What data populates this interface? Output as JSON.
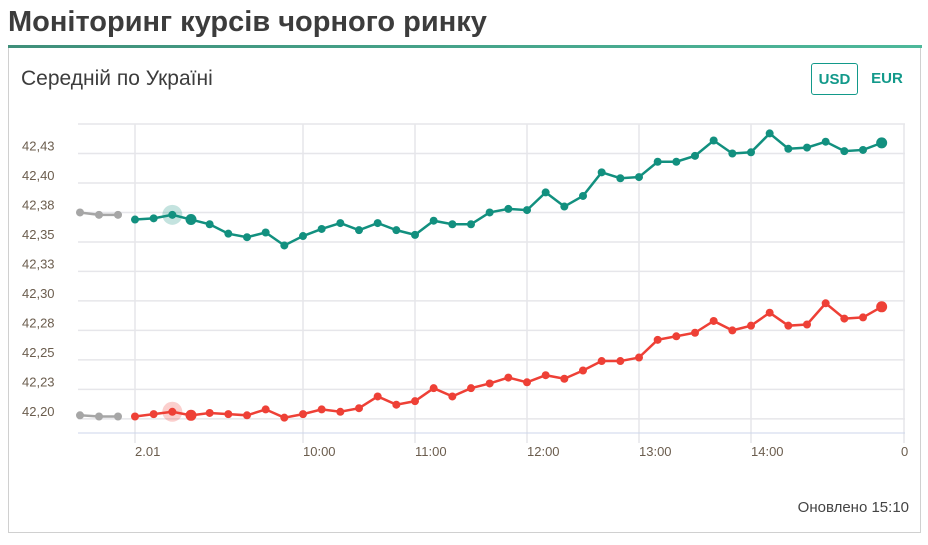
{
  "header": {
    "title": "Моніторинг курсів чорного ринку"
  },
  "card": {
    "subtitle": "Середній по Україні",
    "currency_buttons": [
      {
        "label": "USD",
        "active": true
      },
      {
        "label": "EUR",
        "active": false
      }
    ],
    "updated": "Оновлено 15:10"
  },
  "colors": {
    "usd": "#12907f",
    "eur": "#ee4036",
    "previous": "#a6a6a6",
    "grid": "#e6e6ea",
    "accent": "#12998a"
  },
  "chart_data": {
    "type": "line",
    "title": "Середній по Україні",
    "ylim": [
      42.188,
      42.45
    ],
    "y_gridlines": [
      42.45,
      42.425,
      42.4,
      42.375,
      42.35,
      42.325,
      42.3,
      42.275,
      42.25,
      42.225,
      42.2
    ],
    "y_tick_labels": [
      "42,43",
      "42,40",
      "42,38",
      "42,35",
      "42,33",
      "42,30",
      "42,28",
      "42,25",
      "42,23",
      "42,20"
    ],
    "y_tick_values": [
      42.425,
      42.4,
      42.375,
      42.35,
      42.325,
      42.3,
      42.275,
      42.25,
      42.225,
      42.2
    ],
    "x_start": "08:30",
    "x_step_minutes": 10,
    "x_ticks": [
      {
        "label": "2.01",
        "minute": 510
      },
      {
        "label": "10:00",
        "minute": 600
      },
      {
        "label": "11:00",
        "minute": 660
      },
      {
        "label": "12:00",
        "minute": 720
      },
      {
        "label": "13:00",
        "minute": 780
      },
      {
        "label": "14:00",
        "minute": 840
      },
      {
        "label": "0",
        "minute": 921
      }
    ],
    "previous_day": {
      "usd": [
        42.375,
        42.373,
        42.373
      ],
      "eur": [
        42.203,
        42.202,
        42.202
      ]
    },
    "series": [
      {
        "name": "USD",
        "highlight_index": 2,
        "values": [
          42.369,
          42.37,
          42.373,
          42.369,
          42.365,
          42.357,
          42.354,
          42.358,
          42.347,
          42.355,
          42.361,
          42.366,
          42.36,
          42.366,
          42.36,
          42.356,
          42.368,
          42.365,
          42.365,
          42.375,
          42.378,
          42.377,
          42.392,
          42.38,
          42.389,
          42.409,
          42.404,
          42.405,
          42.418,
          42.418,
          42.423,
          42.436,
          42.425,
          42.426,
          42.442,
          42.429,
          42.43,
          42.435,
          42.427,
          42.428,
          42.434
        ]
      },
      {
        "name": "EUR",
        "highlight_index": 2,
        "values": [
          42.202,
          42.204,
          42.206,
          42.203,
          42.205,
          42.204,
          42.203,
          42.208,
          42.201,
          42.204,
          42.208,
          42.206,
          42.209,
          42.219,
          42.212,
          42.215,
          42.226,
          42.219,
          42.226,
          42.23,
          42.235,
          42.231,
          42.237,
          42.234,
          42.241,
          42.249,
          42.249,
          42.252,
          42.267,
          42.27,
          42.273,
          42.283,
          42.275,
          42.279,
          42.29,
          42.279,
          42.28,
          42.298,
          42.285,
          42.286,
          42.295
        ]
      }
    ]
  }
}
